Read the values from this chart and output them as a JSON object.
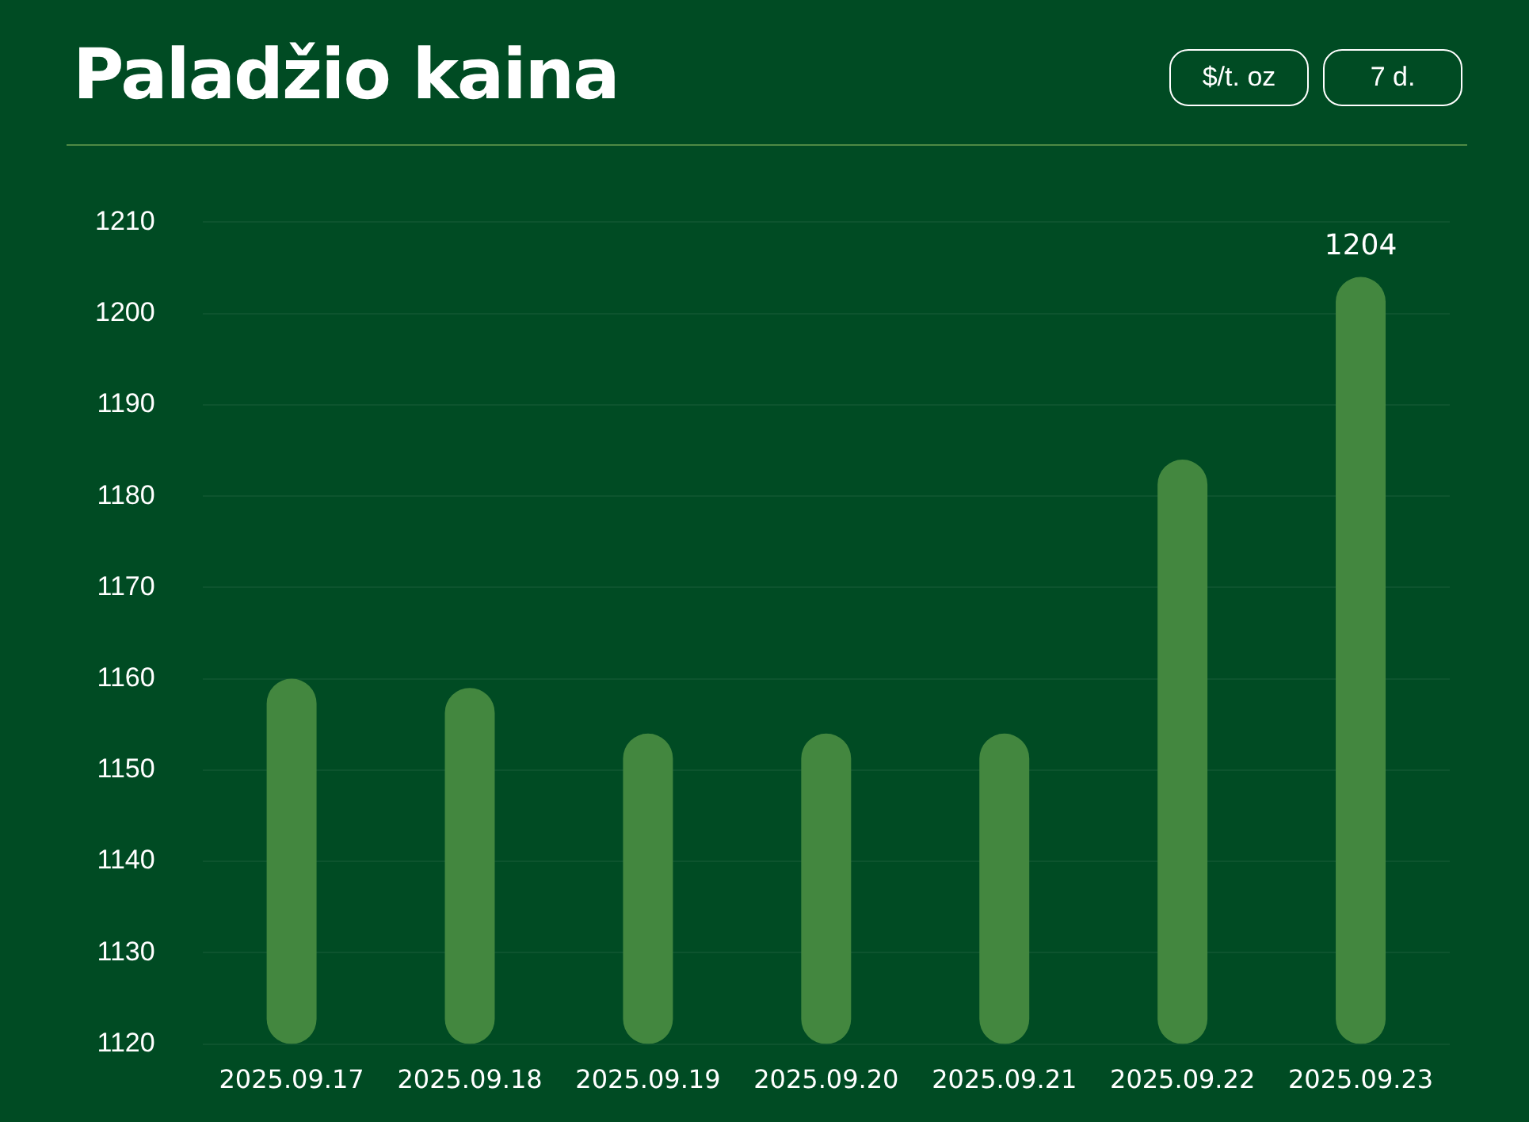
{
  "chart_data": {
    "type": "bar",
    "title": "Paladžio kaina",
    "annotations": [
      "$/t. oz",
      "7 d."
    ],
    "categories": [
      "2025.09.17",
      "2025.09.18",
      "2025.09.19",
      "2025.09.20",
      "2025.09.21",
      "2025.09.22",
      "2025.09.23"
    ],
    "values": [
      1160,
      1159,
      1154,
      1154,
      1154,
      1184,
      1204
    ],
    "value_labels": [
      null,
      null,
      null,
      null,
      null,
      null,
      "1204"
    ],
    "color": "#43873f",
    "ylim": [
      1120,
      1210
    ],
    "yticks": [
      1120,
      1130,
      1140,
      1150,
      1160,
      1170,
      1180,
      1190,
      1200,
      1210
    ],
    "grid": "y",
    "legend": false
  }
}
